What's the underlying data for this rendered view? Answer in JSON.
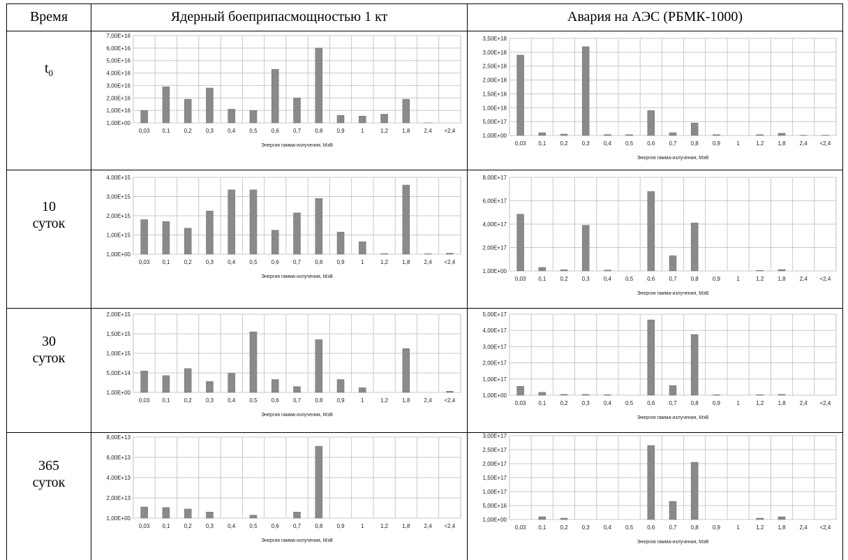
{
  "table": {
    "col_time": "Время",
    "col_weapon": "Ядерный боеприпасмощностью 1 кт",
    "col_npp": "Авария на АЭС  (РБМК-1000)"
  },
  "rows": [
    {
      "label_main": "t",
      "label_sub": "0"
    },
    {
      "label_main": "10",
      "label_sub": "суток"
    },
    {
      "label_main": "30",
      "label_sub": "суток"
    },
    {
      "label_main": "365",
      "label_sub": "суток"
    }
  ],
  "chart_data": [
    {
      "type": "bar",
      "categories": [
        "0,03",
        "0,1",
        "0,2",
        "0,3",
        "0,4",
        "0,5",
        "0,6",
        "0,7",
        "0,8",
        "0,9",
        "1",
        "1,2",
        "1,8",
        "2,4",
        "<2,4"
      ],
      "values": [
        1e+16,
        2.9e+16,
        1.9e+16,
        2.8e+16,
        1.1e+16,
        1e+16,
        4.3e+16,
        2e+16,
        6e+16,
        6000000000000000.0,
        5500000000000000.0,
        7000000000000000.0,
        1.9e+16,
        100000000000000.0,
        0
      ],
      "yticks": [
        "1,00E+00",
        "1,00E+16",
        "2,00E+16",
        "3,00E+16",
        "4,00E+16",
        "5,00E+16",
        "6,00E+16",
        "7,00E+16"
      ],
      "ylim": [
        0,
        7e+16
      ],
      "xlabel": "Энергия гамма-излучения, МэВ",
      "grid": true
    },
    {
      "type": "bar",
      "categories": [
        "0,03",
        "0,1",
        "0,2",
        "0,3",
        "0,4",
        "0,5",
        "0,6",
        "0,7",
        "0,8",
        "0,9",
        "1",
        "1,2",
        "1,8",
        "2,4",
        "<2,4"
      ],
      "values": [
        2.9e+18,
        1e+17,
        5e+16,
        3.2e+18,
        3e+16,
        3e+16,
        9e+17,
        1e+17,
        4.5e+17,
        3e+16,
        0,
        3e+16,
        8e+16,
        1e+16,
        1e+16
      ],
      "yticks": [
        "1,00E+00",
        "5,00E+17",
        "1,00E+18",
        "1,50E+18",
        "2,00E+18",
        "2,50E+18",
        "3,00E+18",
        "3,50E+18"
      ],
      "ylim": [
        0,
        3.5e+18
      ],
      "xlabel": "Энергия гамма-излучения, МэВ",
      "grid": true
    },
    {
      "type": "bar",
      "categories": [
        "0,03",
        "0,1",
        "0,2",
        "0,3",
        "0,4",
        "0,5",
        "0,6",
        "0,7",
        "0,8",
        "0,9",
        "1",
        "1,2",
        "1,8",
        "2,4",
        "<2,4"
      ],
      "values": [
        1800000000000000.0,
        1700000000000000.0,
        1350000000000000.0,
        2250000000000000.0,
        3350000000000000.0,
        3350000000000000.0,
        1250000000000000.0,
        2150000000000000.0,
        2900000000000000.0,
        1150000000000000.0,
        650000000000000.0,
        30000000000000.0,
        3600000000000000.0,
        20000000000000.0,
        50000000000000.0
      ],
      "yticks": [
        "1,00E+00",
        "1,00E+15",
        "2,00E+15",
        "3,00E+15",
        "4,00E+15"
      ],
      "ylim": [
        0,
        4000000000000000.0
      ],
      "xlabel": "Энергия гамма-излучения, МэВ",
      "grid": true
    },
    {
      "type": "bar",
      "categories": [
        "0,03",
        "0,1",
        "0,2",
        "0,3",
        "0,4",
        "0,5",
        "0,6",
        "0,7",
        "0,8",
        "0,9",
        "1",
        "1,2",
        "1,8",
        "2,4",
        "<2,4"
      ],
      "values": [
        4.85e+17,
        3e+16,
        1e+16,
        3.9e+17,
        8000000000000000.0,
        0,
        6.8e+17,
        1.3e+17,
        4.1e+17,
        0,
        0,
        5000000000000000.0,
        1.2e+16,
        0,
        0
      ],
      "yticks": [
        "1,00E+00",
        "2,00E+17",
        "4,00E+17",
        "6,00E+17",
        "8,00E+17"
      ],
      "ylim": [
        0,
        8e+17
      ],
      "xlabel": "Энергия гамма-излучения, МэВ",
      "grid": true
    },
    {
      "type": "bar",
      "categories": [
        "0,03",
        "0,1",
        "0,2",
        "0,3",
        "0,4",
        "0,5",
        "0,6",
        "0,7",
        "0,8",
        "0,9",
        "1",
        "1,2",
        "1,8",
        "2,4",
        "<2,4"
      ],
      "values": [
        550000000000000.0,
        430000000000000.0,
        610000000000000.0,
        280000000000000.0,
        490000000000000.0,
        1550000000000000.0,
        330000000000000.0,
        150000000000000.0,
        1350000000000000.0,
        330000000000000.0,
        120000000000000.0,
        0,
        1120000000000000.0,
        0,
        30000000000000.0
      ],
      "yticks": [
        "1,00E+00",
        "5,00E+14",
        "1,00E+15",
        "1,50E+15",
        "2,00E+15"
      ],
      "ylim": [
        0,
        2000000000000000.0
      ],
      "xlabel": "Энергия гамма-излучения, МэВ",
      "grid": true
    },
    {
      "type": "bar",
      "categories": [
        "0,03",
        "0,1",
        "0,2",
        "0,3",
        "0,4",
        "0,5",
        "0,6",
        "0,7",
        "0,8",
        "0,9",
        "1",
        "1,2",
        "1,8",
        "2,4",
        "<2,4"
      ],
      "values": [
        5.5e+16,
        1.8e+16,
        5000000000000000.0,
        5000000000000000.0,
        3000000000000000.0,
        0,
        4.65e+17,
        6e+16,
        3.75e+17,
        3000000000000000.0,
        0,
        3000000000000000.0,
        5000000000000000.0,
        0,
        0
      ],
      "yticks": [
        "1,00E+00",
        "1,00E+17",
        "2,00E+17",
        "3,00E+17",
        "4,00E+17",
        "5,00E+17"
      ],
      "ylim": [
        0,
        5e+17
      ],
      "xlabel": "Энергия гамма-излучения, МэВ",
      "grid": true
    },
    {
      "type": "bar",
      "categories": [
        "0,03",
        "0,1",
        "0,2",
        "0,3",
        "0,4",
        "0,5",
        "0,6",
        "0,7",
        "0,8",
        "0,9",
        "1",
        "1,2",
        "1,8",
        "2,4",
        "<2,4"
      ],
      "values": [
        11000000000000.0,
        10500000000000.0,
        9000000000000.0,
        6000000000000.0,
        0,
        3000000000000.0,
        0,
        6000000000000.0,
        71000000000000.0,
        0,
        0,
        0,
        0,
        0,
        0
      ],
      "yticks": [
        "1,00E+00",
        "2,00E+13",
        "4,00E+13",
        "6,00E+13",
        "8,00E+13"
      ],
      "ylim": [
        0,
        80000000000000.0
      ],
      "xlabel": "Энергия гамма-излучения, МэВ",
      "grid": true
    },
    {
      "type": "bar",
      "categories": [
        "0,03",
        "0,1",
        "0,2",
        "0,3",
        "0,4",
        "0,5",
        "0,6",
        "0,7",
        "0,8",
        "0,9",
        "1",
        "1,2",
        "1,8",
        "2,4",
        "<2,4"
      ],
      "values": [
        0,
        1e+16,
        5000000000000000.0,
        0,
        0,
        0,
        2.65e+17,
        6.5e+16,
        2.05e+17,
        0,
        0,
        5000000000000000.0,
        1e+16,
        0,
        0
      ],
      "yticks": [
        "1,00E+00",
        "5,00E+16",
        "1,00E+17",
        "1,50E+17",
        "2,00E+17",
        "2,50E+17",
        "3,00E+17"
      ],
      "ylim": [
        0,
        3e+17
      ],
      "xlabel": "Энергия гамма-излучения, МэВ",
      "grid": true
    }
  ]
}
